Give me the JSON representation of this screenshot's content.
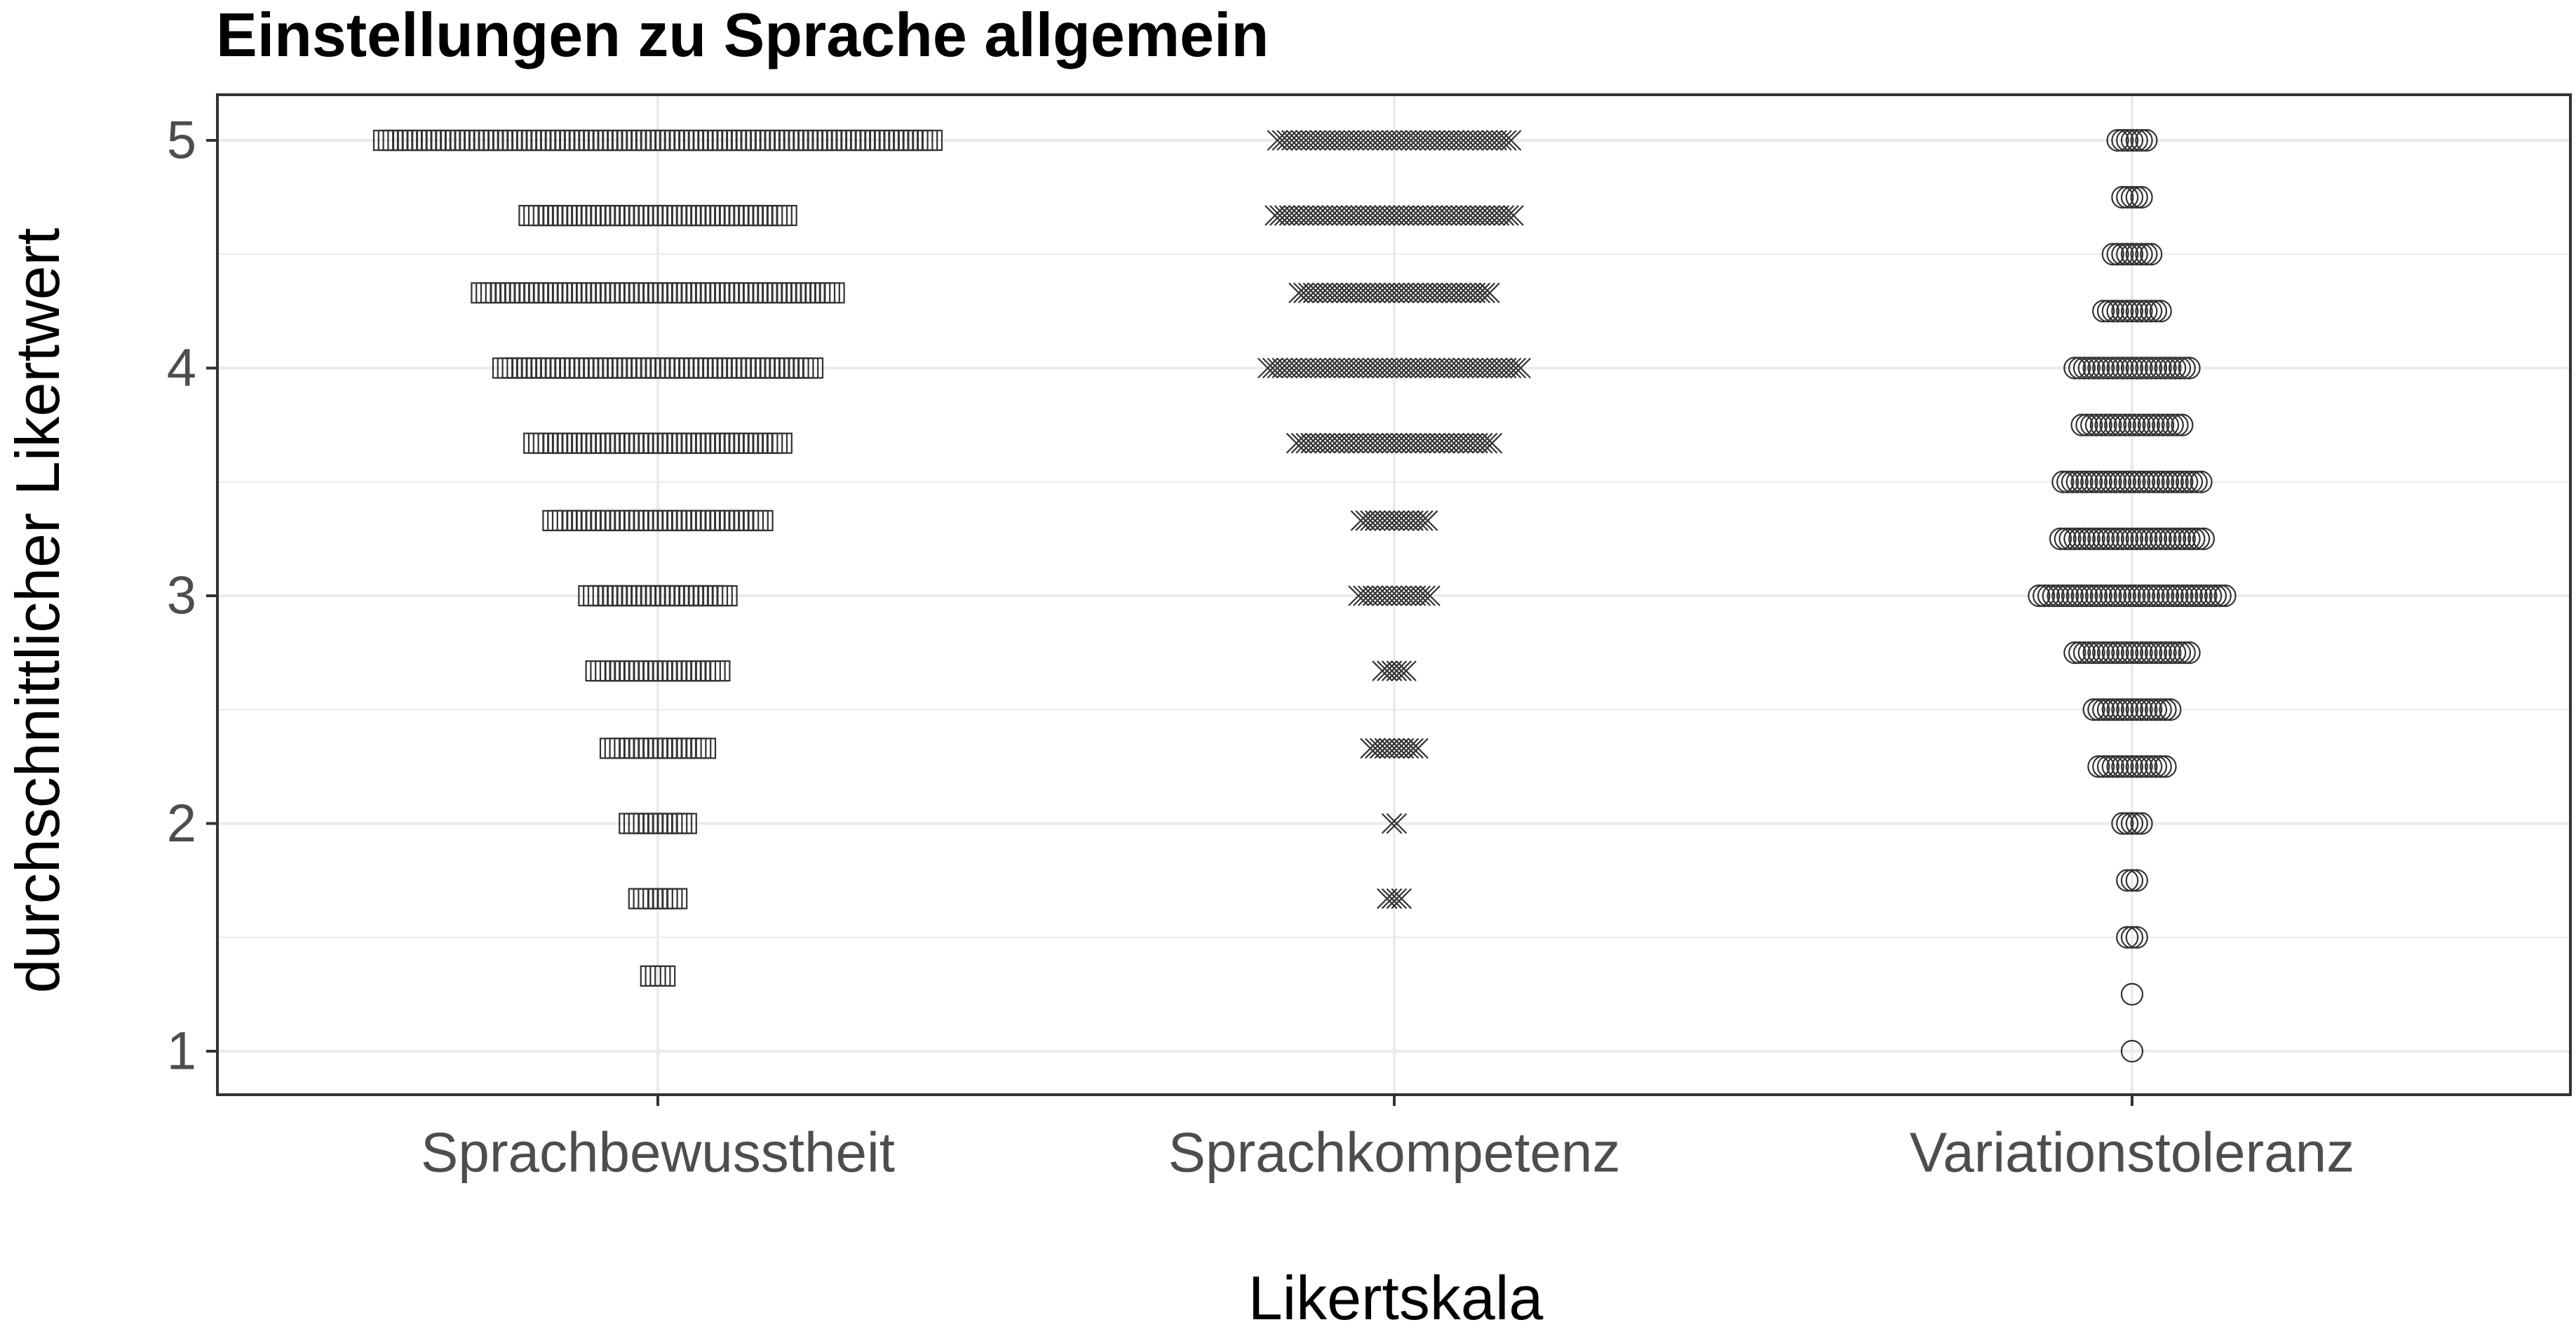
{
  "chart_data": {
    "type": "scatter",
    "subtype": "dotplot",
    "title": "Einstellungen zu Sprache allgemein",
    "xlabel": "Likertskala",
    "ylabel": "durchschnittlicher Likertwert",
    "ylim": [
      0.8,
      5.2
    ],
    "yticks": [
      "1",
      "2",
      "3",
      "4",
      "5"
    ],
    "categories": [
      "Sprachbewusstheit",
      "Sprachkompetenz",
      "Variationstoleranz"
    ],
    "grid": true,
    "legend": "none",
    "series": [
      {
        "category": "Sprachbewusstheit",
        "marker": "square",
        "points": [
          {
            "y": 5.0,
            "count": 116
          },
          {
            "y": 4.67,
            "count": 55
          },
          {
            "y": 4.33,
            "count": 75
          },
          {
            "y": 4.0,
            "count": 66
          },
          {
            "y": 3.67,
            "count": 53
          },
          {
            "y": 3.33,
            "count": 45
          },
          {
            "y": 3.0,
            "count": 30
          },
          {
            "y": 2.67,
            "count": 27
          },
          {
            "y": 2.33,
            "count": 21
          },
          {
            "y": 2.0,
            "count": 13
          },
          {
            "y": 1.67,
            "count": 9
          },
          {
            "y": 1.33,
            "count": 4
          }
        ]
      },
      {
        "category": "Sprachkompetenz",
        "marker": "x",
        "points": [
          {
            "y": 5.0,
            "count": 50
          },
          {
            "y": 4.67,
            "count": 51
          },
          {
            "y": 4.33,
            "count": 41
          },
          {
            "y": 4.0,
            "count": 54
          },
          {
            "y": 3.67,
            "count": 42
          },
          {
            "y": 3.33,
            "count": 15
          },
          {
            "y": 3.0,
            "count": 16
          },
          {
            "y": 2.67,
            "count": 6
          },
          {
            "y": 2.33,
            "count": 11
          },
          {
            "y": 2.0,
            "count": 2
          },
          {
            "y": 1.67,
            "count": 4
          }
        ]
      },
      {
        "category": "Variationstoleranz",
        "marker": "circle",
        "points": [
          {
            "y": 5.0,
            "count": 7
          },
          {
            "y": 4.75,
            "count": 5
          },
          {
            "y": 4.5,
            "count": 9
          },
          {
            "y": 4.25,
            "count": 13
          },
          {
            "y": 4.0,
            "count": 25
          },
          {
            "y": 3.75,
            "count": 22
          },
          {
            "y": 3.5,
            "count": 30
          },
          {
            "y": 3.25,
            "count": 31
          },
          {
            "y": 3.0,
            "count": 40
          },
          {
            "y": 2.75,
            "count": 25
          },
          {
            "y": 2.5,
            "count": 17
          },
          {
            "y": 2.25,
            "count": 15
          },
          {
            "y": 2.0,
            "count": 5
          },
          {
            "y": 1.75,
            "count": 3
          },
          {
            "y": 1.5,
            "count": 3
          },
          {
            "y": 1.25,
            "count": 1
          },
          {
            "y": 1.0,
            "count": 1
          }
        ]
      }
    ]
  }
}
